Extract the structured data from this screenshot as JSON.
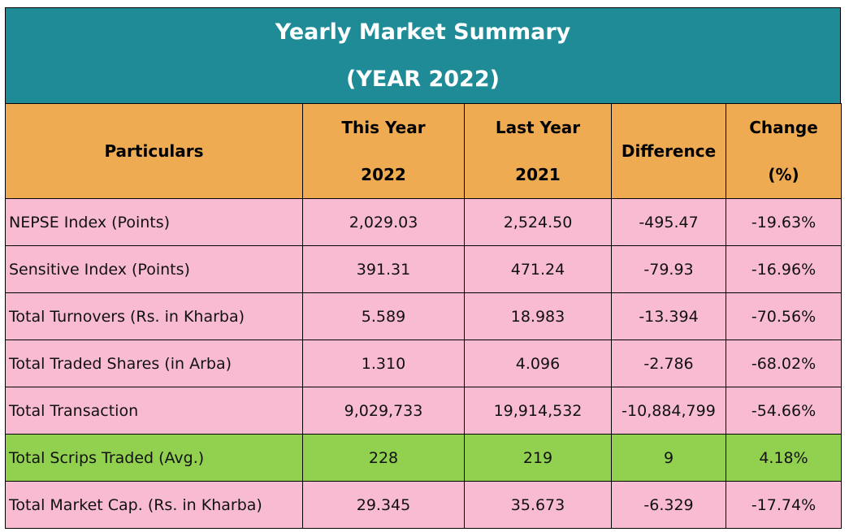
{
  "title": "Yearly Market Summary",
  "subtitle": "(YEAR 2022)",
  "headers": {
    "particulars": "Particulars",
    "this_year_label": "This Year",
    "this_year": "2022",
    "last_year_label": "Last Year",
    "last_year": "2021",
    "difference": "Difference",
    "change_label": "Change",
    "change_unit": "(%)"
  },
  "highlight_color": "#92d050",
  "rows": [
    {
      "particular": "NEPSE Index (Points)",
      "this_year": "2,029.03",
      "last_year": "2,524.50",
      "difference": "-495.47",
      "change": "-19.63%"
    },
    {
      "particular": "Sensitive Index (Points)",
      "this_year": "391.31",
      "last_year": "471.24",
      "difference": "-79.93",
      "change": "-16.96%"
    },
    {
      "particular": "Total Turnovers (Rs. in Kharba)",
      "this_year": "5.589",
      "last_year": "18.983",
      "difference": "-13.394",
      "change": "-70.56%"
    },
    {
      "particular": "Total Traded Shares (in Arba)",
      "this_year": "1.310",
      "last_year": "4.096",
      "difference": "-2.786",
      "change": "-68.02%"
    },
    {
      "particular": "Total Transaction",
      "this_year": "9,029,733",
      "last_year": "19,914,532",
      "difference": "-10,884,799",
      "change": "-54.66%"
    },
    {
      "particular": "Total Scrips Traded (Avg.)",
      "this_year": "228",
      "last_year": "219",
      "difference": "9",
      "change": "4.18%"
    },
    {
      "particular": "Total Market Cap. (Rs. in Kharba)",
      "this_year": "29.345",
      "last_year": "35.673",
      "difference": "-6.329",
      "change": "-17.74%"
    }
  ]
}
